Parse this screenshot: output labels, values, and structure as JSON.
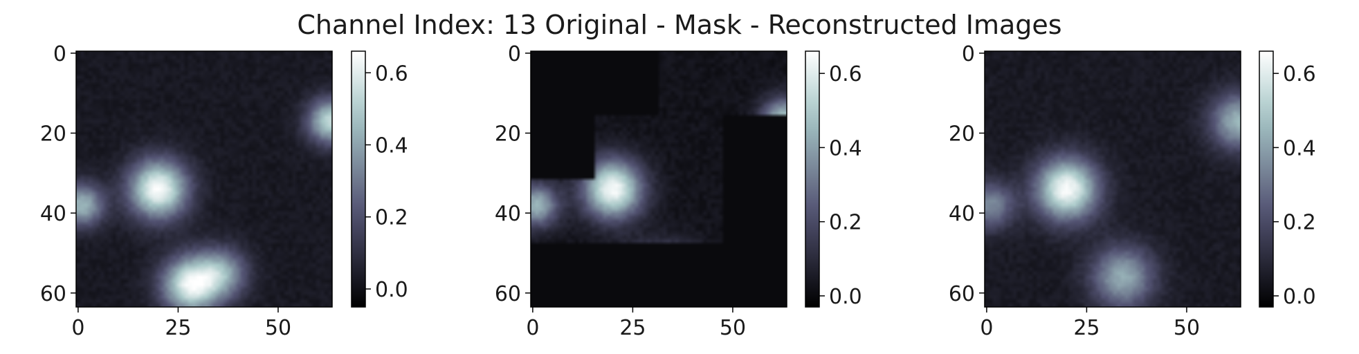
{
  "title": "Channel Index: 13 Original - Mask - Reconstructed Images",
  "chart_data": [
    {
      "type": "heatmap",
      "colormap": "bone",
      "image_size": [
        64,
        64
      ],
      "xticks": [
        0,
        25,
        50
      ],
      "yticks": [
        0,
        20,
        40,
        60
      ],
      "colorbar": {
        "ticks": [
          0.0,
          0.2,
          0.4,
          0.6
        ],
        "tick_labels": [
          "0.0",
          "0.2",
          "0.4",
          "0.6"
        ],
        "range": [
          -0.05,
          0.66
        ]
      },
      "background": 0.03,
      "blobs": [
        {
          "x": 20,
          "y": 34,
          "peak": 0.62,
          "sigma": 5.2
        },
        {
          "x": 28,
          "y": 58,
          "peak": 0.58,
          "sigma": 5.0
        },
        {
          "x": 36,
          "y": 55,
          "peak": 0.35,
          "sigma": 4.5
        },
        {
          "x": 63,
          "y": 17,
          "peak": 0.5,
          "sigma": 4.0
        },
        {
          "x": 1,
          "y": 38,
          "peak": 0.42,
          "sigma": 3.8
        }
      ],
      "masked_regions": []
    },
    {
      "type": "heatmap",
      "colormap": "bone",
      "image_size": [
        64,
        64
      ],
      "xticks": [
        0,
        25,
        50
      ],
      "yticks": [
        0,
        20,
        40,
        60
      ],
      "colorbar": {
        "ticks": [
          0.0,
          0.2,
          0.4,
          0.6
        ],
        "tick_labels": [
          "0.0",
          "0.2",
          "0.4",
          "0.6"
        ],
        "range": [
          -0.03,
          0.66
        ]
      },
      "background": 0.03,
      "blobs": [
        {
          "x": 20,
          "y": 34,
          "peak": 0.62,
          "sigma": 5.2
        },
        {
          "x": 28,
          "y": 58,
          "peak": 0.58,
          "sigma": 5.0
        },
        {
          "x": 36,
          "y": 55,
          "peak": 0.35,
          "sigma": 4.5
        },
        {
          "x": 63,
          "y": 17,
          "peak": 0.5,
          "sigma": 4.0
        },
        {
          "x": 1,
          "y": 38,
          "peak": 0.42,
          "sigma": 3.8
        }
      ],
      "masked_regions": [
        {
          "x0": 0,
          "x1": 32,
          "y0": 0,
          "y1": 16
        },
        {
          "x0": 0,
          "x1": 16,
          "y0": 16,
          "y1": 32
        },
        {
          "x0": 48,
          "x1": 64,
          "y0": 16,
          "y1": 64
        },
        {
          "x0": 0,
          "x1": 64,
          "y0": 48,
          "y1": 64
        }
      ],
      "mask_value": 0.0
    },
    {
      "type": "heatmap",
      "colormap": "bone",
      "image_size": [
        64,
        64
      ],
      "xticks": [
        0,
        25,
        50
      ],
      "yticks": [
        0,
        20,
        40,
        60
      ],
      "colorbar": {
        "ticks": [
          0.0,
          0.2,
          0.4,
          0.6
        ],
        "tick_labels": [
          "0.0",
          "0.2",
          "0.4",
          "0.6"
        ],
        "range": [
          -0.03,
          0.66
        ]
      },
      "background": 0.05,
      "blobs": [
        {
          "x": 20,
          "y": 34,
          "peak": 0.6,
          "sigma": 5.5
        },
        {
          "x": 34,
          "y": 56,
          "peak": 0.38,
          "sigma": 5.5
        },
        {
          "x": 63,
          "y": 17,
          "peak": 0.4,
          "sigma": 5.0
        },
        {
          "x": 1,
          "y": 38,
          "peak": 0.3,
          "sigma": 4.2
        }
      ],
      "masked_regions": []
    }
  ]
}
